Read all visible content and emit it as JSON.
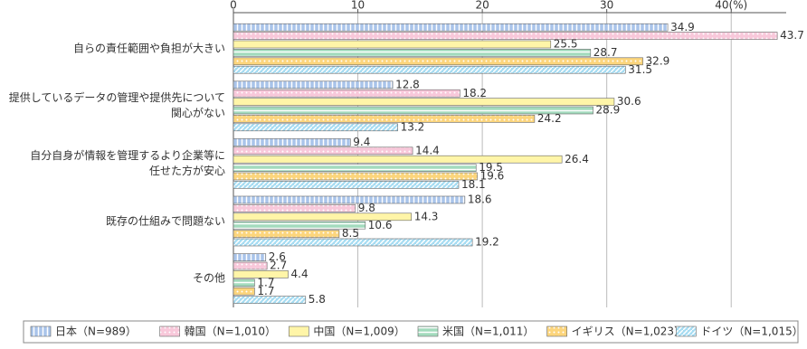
{
  "chart_data": {
    "type": "bar",
    "orientation": "horizontal",
    "categories": [
      "自らの責任範囲や負担が大きい",
      "提供しているデータの管理や提供先について\n関心がない",
      "自分自身が情報を管理するより企業等に\n任せた方が安心",
      "既存の仕組みで問題ない",
      "その他"
    ],
    "series": [
      {
        "name": "日本（N=989）",
        "color": "#a9c4ea",
        "values": [
          34.9,
          12.8,
          9.4,
          18.6,
          2.6
        ]
      },
      {
        "name": "韓国（N=1,010）",
        "color": "#f8c8da",
        "values": [
          43.7,
          18.2,
          14.4,
          9.8,
          2.7
        ]
      },
      {
        "name": "中国（N=1,009）",
        "color": "#fff5a8",
        "values": [
          25.5,
          30.6,
          26.4,
          14.3,
          4.4
        ]
      },
      {
        "name": "米国（N=1,011）",
        "color": "#a3dbbd",
        "values": [
          28.7,
          28.9,
          19.5,
          10.6,
          1.7
        ]
      },
      {
        "name": "イギリス（N=1,023）",
        "color": "#fcd57c",
        "values": [
          32.9,
          24.2,
          19.6,
          8.5,
          1.7
        ]
      },
      {
        "name": "ドイツ（N=1,015）",
        "color": "#a6dcf2",
        "values": [
          31.5,
          13.2,
          18.1,
          19.2,
          5.8
        ]
      }
    ],
    "xlim": [
      0,
      45
    ],
    "xticks": [
      0,
      10,
      20,
      30,
      {
        "value": 40,
        "label": "40(%)"
      }
    ],
    "grid": true
  }
}
